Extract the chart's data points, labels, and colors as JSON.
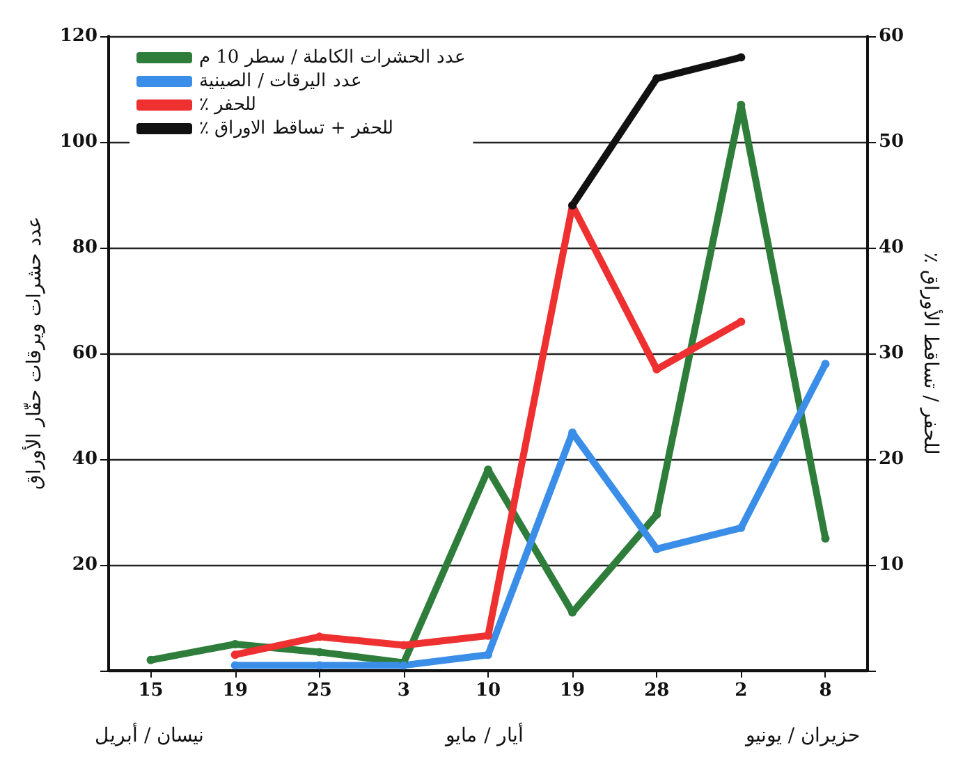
{
  "chart_data": {
    "type": "line",
    "categories": [
      "15",
      "19",
      "25",
      "3",
      "10",
      "19",
      "28",
      "2",
      "8"
    ],
    "ylabel": "عدد حشرات ويرقات حفّار الأوراق",
    "y2label": "٪ للحفر / تساقط الأوراق",
    "ylim": [
      0,
      120
    ],
    "yticks": [
      {
        "value": 0,
        "label": null
      },
      20,
      40,
      60,
      80,
      100,
      120
    ],
    "y2lim": [
      0,
      60
    ],
    "y2ticks": [
      {
        "value": 0,
        "label": null
      },
      10,
      20,
      30,
      40,
      50,
      60
    ],
    "series": [
      {
        "name": "عدد الحشرات الكاملة / سطر 10 م",
        "color": "#2e7d3a",
        "values": [
          2,
          5,
          3.5,
          1.5,
          38,
          11,
          29.5,
          107,
          25
        ]
      },
      {
        "name": "عدد اليرقات / الصينية",
        "color": "#3b8ee8",
        "values": [
          null,
          1,
          1,
          1,
          3,
          45,
          23,
          27,
          58
        ]
      },
      {
        "name": "٪ للحفر",
        "color": "#ee3030",
        "axis": "y2",
        "values": [
          null,
          1.5,
          3.2,
          2.4,
          3.3,
          44,
          28.5,
          33,
          null
        ]
      },
      {
        "name": "٪ للحفر + تساقط الاوراق",
        "color": "#111111",
        "axis": "y2",
        "values": [
          null,
          null,
          null,
          null,
          null,
          44,
          56,
          58,
          null
        ]
      }
    ],
    "annotations": [
      "نيسان / أبريل",
      "أيار / مايو",
      "حزيران / يونيو"
    ],
    "grid": "y",
    "legend": "top left",
    "marker": "circle",
    "line_style": "solid"
  }
}
